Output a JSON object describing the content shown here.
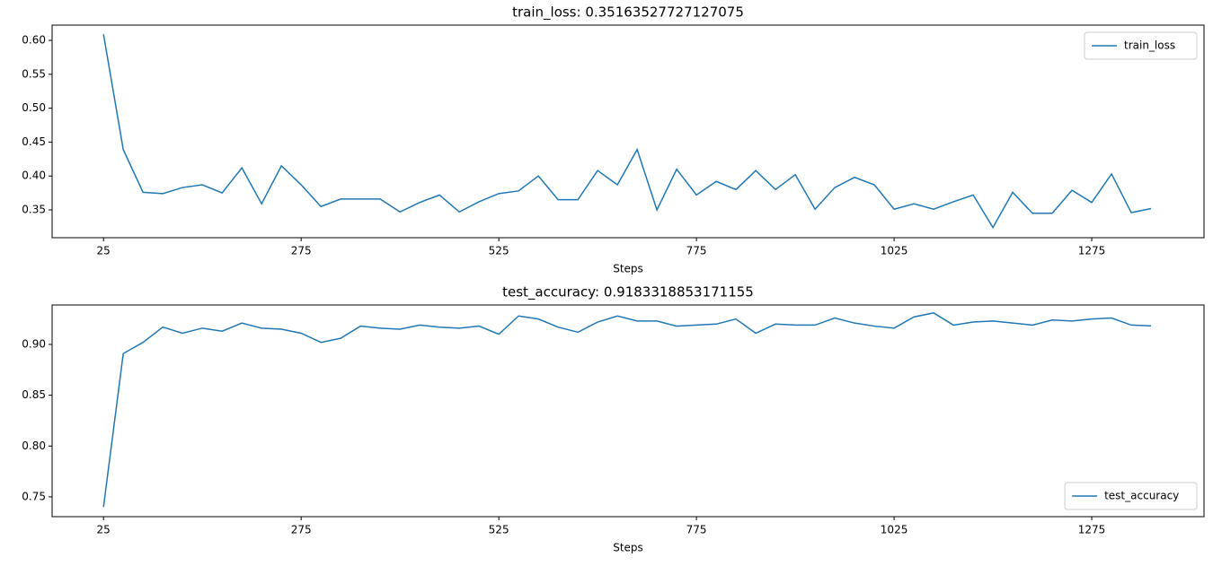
{
  "chart_data": [
    {
      "type": "line",
      "title": "train_loss: 0.35163527727127075",
      "x_label": "Steps",
      "x": [
        25,
        50,
        75,
        100,
        125,
        150,
        175,
        200,
        225,
        250,
        275,
        300,
        325,
        350,
        375,
        400,
        425,
        450,
        475,
        500,
        525,
        550,
        575,
        600,
        625,
        650,
        675,
        700,
        725,
        750,
        775,
        800,
        825,
        850,
        875,
        900,
        925,
        950,
        975,
        1000,
        1025,
        1050,
        1075,
        1100,
        1125,
        1150,
        1175,
        1200,
        1225,
        1250,
        1275,
        1300,
        1325,
        1350
      ],
      "series": [
        {
          "name": "train_loss",
          "color": "#1f77b4",
          "values": [
            0.609,
            0.439,
            0.376,
            0.374,
            0.383,
            0.387,
            0.375,
            0.412,
            0.359,
            0.415,
            0.387,
            0.355,
            0.366,
            0.366,
            0.366,
            0.347,
            0.361,
            0.372,
            0.347,
            0.362,
            0.374,
            0.378,
            0.4,
            0.365,
            0.365,
            0.408,
            0.387,
            0.439,
            0.35,
            0.41,
            0.372,
            0.392,
            0.38,
            0.408,
            0.38,
            0.402,
            0.351,
            0.383,
            0.398,
            0.387,
            0.351,
            0.359,
            0.351,
            0.362,
            0.372,
            0.324,
            0.376,
            0.345,
            0.345,
            0.379,
            0.361,
            0.403,
            0.346,
            0.352
          ]
        }
      ],
      "xlim": [
        -40,
        1417
      ],
      "xticks": [
        25,
        275,
        525,
        775,
        1025,
        1275
      ],
      "ylim": [
        0.309,
        0.6225
      ],
      "yticks": [
        0.35,
        {
          "value": 0.4,
          "label": "0.40"
        },
        0.45,
        {
          "value": 0.5,
          "label": "0.50"
        },
        0.55,
        {
          "value": 0.6,
          "label": "0.60"
        }
      ],
      "legend": "upper right"
    },
    {
      "type": "line",
      "title": "test_accuracy: 0.9183318853171155",
      "x_label": "Steps",
      "x": [
        25,
        50,
        75,
        100,
        125,
        150,
        175,
        200,
        225,
        250,
        275,
        300,
        325,
        350,
        375,
        400,
        425,
        450,
        475,
        500,
        525,
        550,
        575,
        600,
        625,
        650,
        675,
        700,
        725,
        750,
        775,
        800,
        825,
        850,
        875,
        900,
        925,
        950,
        975,
        1000,
        1025,
        1050,
        1075,
        1100,
        1125,
        1150,
        1175,
        1200,
        1225,
        1250,
        1275,
        1300,
        1325,
        1350
      ],
      "series": [
        {
          "name": "test_accuracy",
          "color": "#1f77b4",
          "values": [
            0.74,
            0.891,
            0.902,
            0.917,
            0.911,
            0.916,
            0.913,
            0.921,
            0.916,
            0.915,
            0.911,
            0.902,
            0.906,
            0.918,
            0.916,
            0.915,
            0.919,
            0.917,
            0.916,
            0.918,
            0.91,
            0.928,
            0.925,
            0.917,
            0.912,
            0.922,
            0.928,
            0.923,
            0.923,
            0.918,
            0.919,
            0.92,
            0.925,
            0.911,
            0.92,
            0.919,
            0.919,
            0.926,
            0.921,
            0.918,
            0.916,
            0.927,
            0.931,
            0.919,
            0.922,
            0.923,
            0.921,
            0.919,
            0.924,
            0.923,
            0.925,
            0.926,
            0.919,
            0.9183
          ]
        }
      ],
      "xlim": [
        -40,
        1417
      ],
      "xticks": [
        25,
        275,
        525,
        775,
        1025,
        1275
      ],
      "ylim": [
        0.7305,
        0.9388
      ],
      "yticks": [
        0.75,
        {
          "value": 0.8,
          "label": "0.80"
        },
        0.85,
        {
          "value": 0.9,
          "label": "0.90"
        }
      ],
      "legend": "lower right"
    }
  ]
}
